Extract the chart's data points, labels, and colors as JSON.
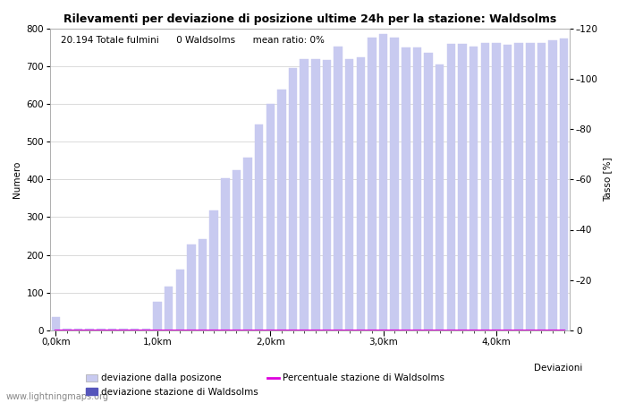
{
  "title": "Rilevamenti per deviazione di posizione ultime 24h per la stazione: Waldsolms",
  "subtitle": "20.194 Totale fulmini      0 Waldsolms      mean ratio: 0%",
  "xlabel": "Deviazioni",
  "ylabel_left": "Numero",
  "ylabel_right": "Tasso [%]",
  "xlim_left": -0.5,
  "xlim_right": 45.5,
  "ylim_left": [
    0,
    800
  ],
  "ylim_right": [
    0,
    120
  ],
  "yticks_left": [
    0,
    100,
    200,
    300,
    400,
    500,
    600,
    700,
    800
  ],
  "yticks_right": [
    0,
    20,
    40,
    60,
    80,
    100,
    120
  ],
  "xtick_labels": [
    "0,0km",
    "1,0km",
    "2,0km",
    "3,0km",
    "4,0km"
  ],
  "xtick_positions": [
    0,
    9,
    19,
    29,
    39
  ],
  "bar_color_light": "#c8caf0",
  "bar_color_dark": "#5555bb",
  "line_color": "#dd00dd",
  "background_color": "#ffffff",
  "grid_color": "#cccccc",
  "watermark": "www.lightningmaps.org",
  "legend_label_light": "deviazione dalla posizone",
  "legend_label_dark": "deviazione stazione di Waldsolms",
  "legend_label_line": "Percentuale stazione di Waldsolms",
  "bar_values": [
    35,
    4,
    5,
    4,
    4,
    5,
    5,
    5,
    5,
    75,
    115,
    162,
    228,
    242,
    318,
    404,
    425,
    457,
    545,
    600,
    638,
    695,
    718,
    718,
    716,
    752,
    718,
    723,
    775,
    785,
    775,
    748,
    748,
    735,
    703,
    758,
    758,
    752,
    762,
    762,
    757,
    762,
    760,
    760,
    768,
    772
  ],
  "station_bar_values": [
    0,
    0,
    0,
    0,
    0,
    0,
    0,
    0,
    0,
    0,
    0,
    0,
    0,
    0,
    0,
    0,
    0,
    0,
    0,
    0,
    0,
    0,
    0,
    0,
    0,
    0,
    0,
    0,
    0,
    0,
    0,
    0,
    0,
    0,
    0,
    0,
    0,
    0,
    0,
    0,
    0,
    0,
    0,
    0,
    0,
    0
  ],
  "percent_values": [
    0,
    0,
    0,
    0,
    0,
    0,
    0,
    0,
    0,
    0,
    0,
    0,
    0,
    0,
    0,
    0,
    0,
    0,
    0,
    0,
    0,
    0,
    0,
    0,
    0,
    0,
    0,
    0,
    0,
    0,
    0,
    0,
    0,
    0,
    0,
    0,
    0,
    0,
    0,
    0,
    0,
    0,
    0,
    0,
    0,
    0
  ],
  "title_fontsize": 9,
  "subtitle_fontsize": 7.5,
  "axis_fontsize": 7.5,
  "tick_fontsize": 7.5,
  "legend_fontsize": 7.5,
  "watermark_fontsize": 7
}
